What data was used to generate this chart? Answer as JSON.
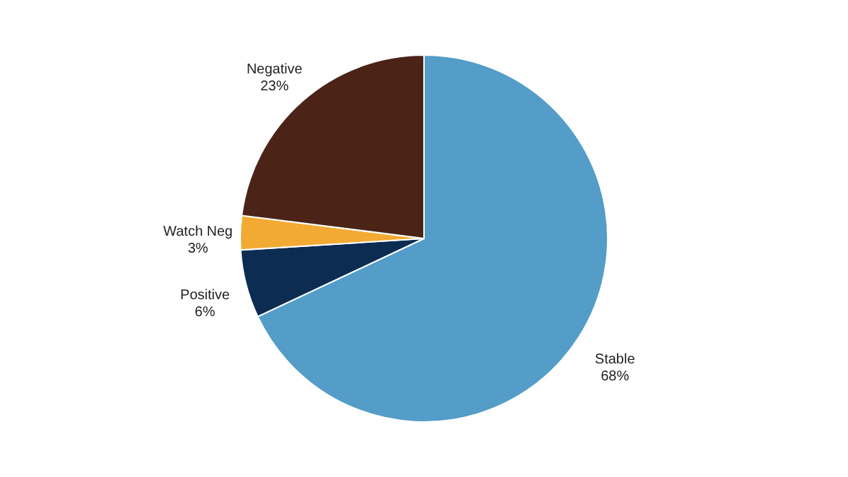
{
  "chart_data": {
    "type": "pie",
    "categories": [
      "Stable",
      "Positive",
      "Watch Neg",
      "Negative"
    ],
    "values": [
      68,
      6,
      3,
      23
    ],
    "value_labels": [
      "68%",
      "6%",
      "3%",
      "23%"
    ],
    "colors": [
      "#539dc8",
      "#0c2c52",
      "#f2aa33",
      "#4b2417"
    ]
  }
}
